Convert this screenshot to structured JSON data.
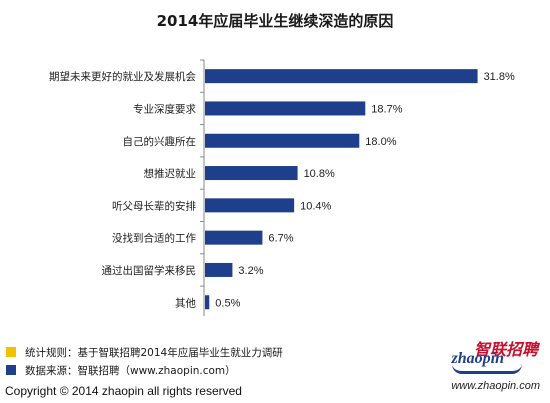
{
  "chart_data": {
    "type": "bar",
    "orientation": "horizontal",
    "title": "2014年应届毕业生继续深造的原因",
    "categories": [
      "期望未来更好的就业及发展机会",
      "专业深度要求",
      "自己的兴趣所在",
      "想推迟就业",
      "听父母长辈的安排",
      "没找到合适的工作",
      "通过出国留学来移民",
      "其他"
    ],
    "values": [
      31.8,
      18.7,
      18.0,
      10.8,
      10.4,
      6.7,
      3.2,
      0.5
    ],
    "value_labels": [
      "31.8%",
      "18.7%",
      "18.0%",
      "10.8%",
      "10.4%",
      "6.7%",
      "3.2%",
      "0.5%"
    ],
    "xlim": [
      0,
      35
    ],
    "bar_color": "#1d3f8c",
    "grid": false
  },
  "notes": [
    {
      "text": "统计规则：基于智联招聘2014年应届毕业生就业力调研",
      "color": "#f2c200"
    },
    {
      "text": "数据来源：智联招聘（www.zhaopin.com）",
      "color": "#1d3f8c"
    }
  ],
  "copyright": "Copyright  ©  2014 zhaopin all rights reserved",
  "logo": {
    "cn": "智联招聘",
    "en": "zhaopin",
    "url": "www.zhaopin.com"
  }
}
